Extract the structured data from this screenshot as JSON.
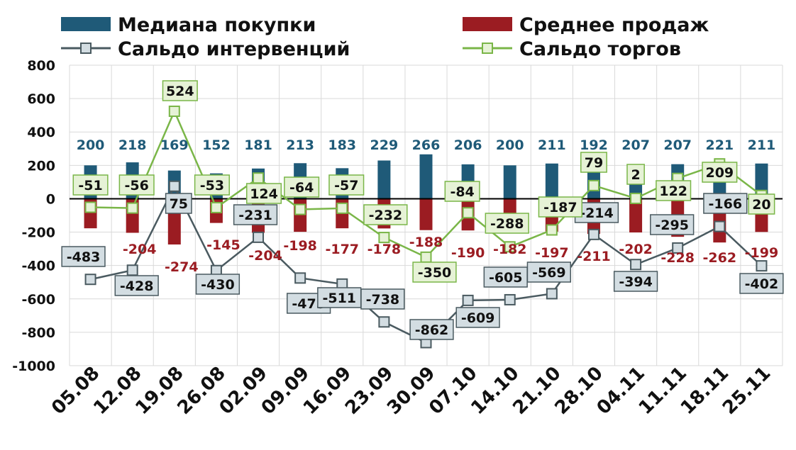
{
  "chart_data": {
    "type": "bar",
    "categories": [
      "05.08",
      "12.08",
      "19.08",
      "26.08",
      "02.09",
      "09.09",
      "16.09",
      "23.09",
      "30.09",
      "07.10",
      "14.10",
      "21.10",
      "28.10",
      "04.11",
      "11.11",
      "18.11",
      "25.11"
    ],
    "ylim": [
      -1000,
      800
    ],
    "yticks": [
      800,
      600,
      400,
      200,
      0,
      -200,
      -400,
      -600,
      -800,
      -1000
    ],
    "grid": true,
    "legend_position": "top",
    "series": [
      {
        "name": "Медиана покупки",
        "type": "bar",
        "color": "#1f5a78",
        "values": [
          200,
          218,
          169,
          152,
          181,
          213,
          183,
          229,
          266,
          206,
          200,
          211,
          192,
          207,
          207,
          221,
          211
        ]
      },
      {
        "name": "Среднее продаж",
        "type": "bar",
        "color": "#9b1c22",
        "values": [
          -177,
          -204,
          -274,
          -145,
          -204,
          -198,
          -177,
          -178,
          -188,
          -190,
          -182,
          -197,
          -211,
          -202,
          -228,
          -262,
          -199
        ],
        "labels": [
          "",
          "-204",
          "-274",
          "-145",
          "-204",
          "-198",
          "-177",
          "-178",
          "-188",
          "-190",
          "-182",
          "-197",
          "-211",
          "-202",
          "-228",
          "-262",
          "-199"
        ]
      },
      {
        "name": "Сальдо интервенций",
        "type": "line",
        "color": "#4a5a60",
        "marker_fill": "#d3dde2",
        "values": [
          -483,
          -428,
          75,
          -430,
          -231,
          -475,
          -511,
          -738,
          -862,
          -609,
          -605,
          -569,
          -214,
          -394,
          -295,
          -166,
          -402
        ]
      },
      {
        "name": "Сальдо торгов",
        "type": "line",
        "color": "#7ab648",
        "marker_fill": "#e6f2d6",
        "values": [
          -51,
          -56,
          524,
          -53,
          124,
          -64,
          -57,
          -232,
          -350,
          -84,
          -288,
          -187,
          79,
          2,
          122,
          209,
          20
        ]
      }
    ]
  }
}
